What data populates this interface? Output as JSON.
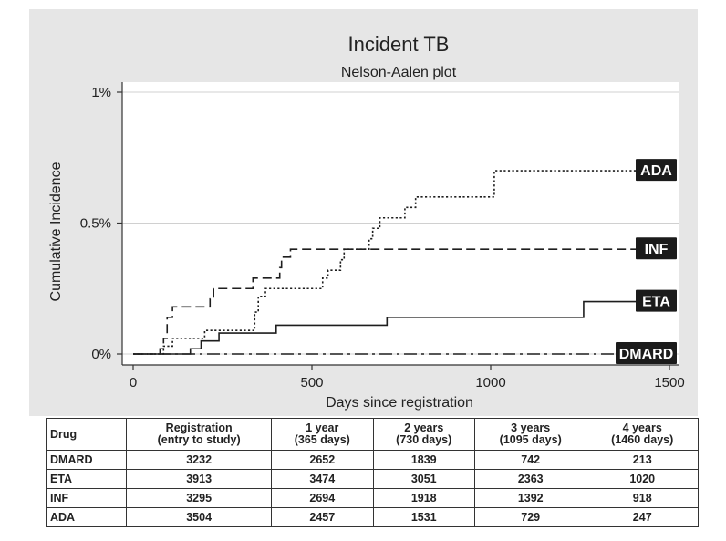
{
  "chart_data": {
    "type": "line",
    "title": "Incident TB",
    "subtitle": "Nelson-Aalen plot",
    "xlabel": "Days since registration",
    "ylabel": "Cumulative Incidence",
    "xlim": [
      0,
      1500
    ],
    "ylim": [
      0,
      1
    ],
    "x_ticks": [
      0,
      500,
      1000,
      1500
    ],
    "y_ticks": [
      {
        "value": 0,
        "label": "0%"
      },
      {
        "value": 0.5,
        "label": "0.5%"
      },
      {
        "value": 1,
        "label": "1%"
      }
    ],
    "grid": "horizontal",
    "series": [
      {
        "name": "ADA",
        "style": "dotted",
        "x": [
          0,
          75,
          85,
          110,
          200,
          235,
          310,
          340,
          350,
          370,
          440,
          450,
          500,
          530,
          545,
          580,
          590,
          660,
          670,
          690,
          700,
          760,
          790,
          920,
          1010,
          1500
        ],
        "y": [
          0,
          0,
          0.03,
          0.06,
          0.09,
          0.09,
          0.09,
          0.16,
          0.22,
          0.25,
          0.25,
          0.25,
          0.25,
          0.29,
          0.32,
          0.36,
          0.4,
          0.44,
          0.48,
          0.52,
          0.52,
          0.56,
          0.6,
          0.6,
          0.7,
          0.7
        ]
      },
      {
        "name": "INF",
        "style": "dashed",
        "x": [
          0,
          65,
          75,
          85,
          95,
          110,
          215,
          225,
          335,
          410,
          415,
          440,
          450,
          1500
        ],
        "y": [
          0,
          0,
          0.02,
          0.06,
          0.14,
          0.18,
          0.21,
          0.25,
          0.29,
          0.33,
          0.37,
          0.4,
          0.4,
          0.4
        ],
        "connect_vertical": false
      },
      {
        "name": "ETA",
        "style": "solid",
        "x": [
          0,
          160,
          190,
          240,
          400,
          710,
          1260,
          1500
        ],
        "y": [
          0,
          0.02,
          0.05,
          0.08,
          0.11,
          0.14,
          0.2,
          0.2
        ]
      },
      {
        "name": "DMARD",
        "style": "dash-dot",
        "x": [
          0,
          1500
        ],
        "y": [
          0,
          0
        ]
      }
    ],
    "series_label_rows": [
      "ADA",
      "INF",
      "ETA",
      "DMARD"
    ],
    "risk_table": {
      "headers": [
        "Drug",
        [
          "Registration",
          "(entry to study)"
        ],
        [
          "1 year",
          "(365 days)"
        ],
        [
          "2 years",
          "(730 days)"
        ],
        [
          "3 years",
          "(1095 days)"
        ],
        [
          "4 years",
          "(1460 days)"
        ]
      ],
      "rows": [
        [
          "DMARD",
          "3232",
          "2652",
          "1839",
          "742",
          "213"
        ],
        [
          "ETA",
          "3913",
          "3474",
          "3051",
          "2363",
          "1020"
        ],
        [
          "INF",
          "3295",
          "2694",
          "1918",
          "1392",
          "918"
        ],
        [
          "ADA",
          "3504",
          "2457",
          "1531",
          "729",
          "247"
        ]
      ]
    }
  }
}
